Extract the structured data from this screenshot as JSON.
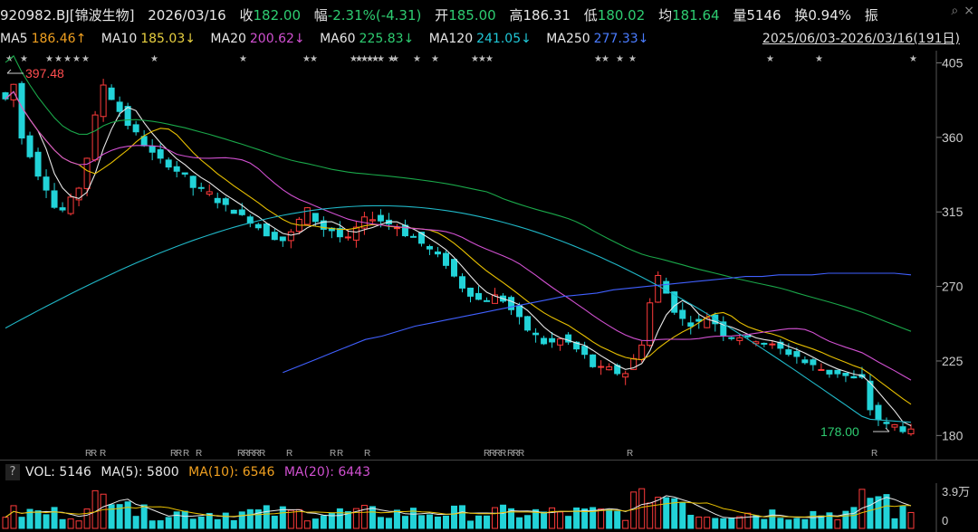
{
  "quote": {
    "code": "920982.BJ[锦波生物]",
    "date": "2026/03/16",
    "close_label": "收",
    "close": "182.00",
    "chg_label": "幅",
    "chg": "-2.31%(-4.31)",
    "open_label": "开",
    "open": "185.00",
    "high_label": "高",
    "high": "186.31",
    "low_label": "低",
    "low": "180.02",
    "avg_label": "均",
    "avg": "181.64",
    "vol_label": "量",
    "vol": "5146",
    "turn_label": "换",
    "turn": "0.94%",
    "amp_label": "振"
  },
  "ma": {
    "ma5": "MA5",
    "ma5_v": "186.46↑",
    "ma10": "MA10",
    "ma10_v": "185.03↓",
    "ma20": "MA20",
    "ma20_v": "200.62↓",
    "ma60": "MA60",
    "ma60_v": "225.83↓",
    "ma120": "MA120",
    "ma120_v": "241.05↓",
    "ma250": "MA250",
    "ma250_v": "277.33↓",
    "period": "2025/06/03-2026/03/16(191日)"
  },
  "volume": {
    "label": "VOL: 5146",
    "ma5": "MA(5): 5800",
    "ma10": "MA(10): 6546",
    "ma20": "MA(20): 6443",
    "axis_top": "3.9万",
    "axis_bottom": "0",
    "help": "?"
  },
  "colors": {
    "up": "#ff3b3b",
    "down": "#22d3d8",
    "ma5": "#e8e8e8",
    "ma10": "#e8c000",
    "ma20": "#d050d0",
    "ma60": "#1aa84a",
    "ma120": "#20b8c8",
    "ma250": "#4060ff"
  },
  "chart_data": {
    "type": "candlestick",
    "y_ticks": [
      "405",
      "360",
      "315",
      "270",
      "225",
      "180"
    ],
    "ylim": [
      172,
      408
    ],
    "max_label": "397.48",
    "min_label": "178.00",
    "close_path": [
      383,
      392,
      360,
      350,
      338,
      330,
      318,
      316,
      322,
      330,
      348,
      372,
      392,
      384,
      376,
      368,
      362,
      356,
      350,
      346,
      344,
      340,
      336,
      330,
      328,
      326,
      322,
      318,
      316,
      312,
      310,
      306,
      302,
      300,
      298,
      302,
      310,
      316,
      310,
      305,
      304,
      300,
      298,
      305,
      310,
      312,
      310,
      308,
      306,
      302,
      300,
      296,
      292,
      288,
      284,
      276,
      270,
      266,
      262,
      262,
      264,
      262,
      256,
      250,
      244,
      240,
      236,
      236,
      238,
      236,
      232,
      228,
      222,
      220,
      220,
      218,
      218,
      226,
      236,
      260,
      276,
      266,
      256,
      250,
      248,
      248,
      252,
      248,
      242,
      240,
      240,
      238,
      238,
      236,
      234,
      232,
      230,
      228,
      224,
      222,
      220,
      218,
      218,
      216,
      214,
      214,
      196,
      190,
      186,
      186,
      184,
      182
    ],
    "ma250_path": [
      218,
      222,
      226,
      230,
      234,
      238,
      240,
      243,
      246,
      248,
      250,
      252,
      254,
      256,
      258,
      260,
      262,
      264,
      265,
      266,
      268,
      269,
      270,
      271,
      272,
      273,
      274,
      275,
      276,
      276,
      277,
      277,
      277,
      278,
      278,
      278,
      278,
      278,
      277
    ]
  }
}
